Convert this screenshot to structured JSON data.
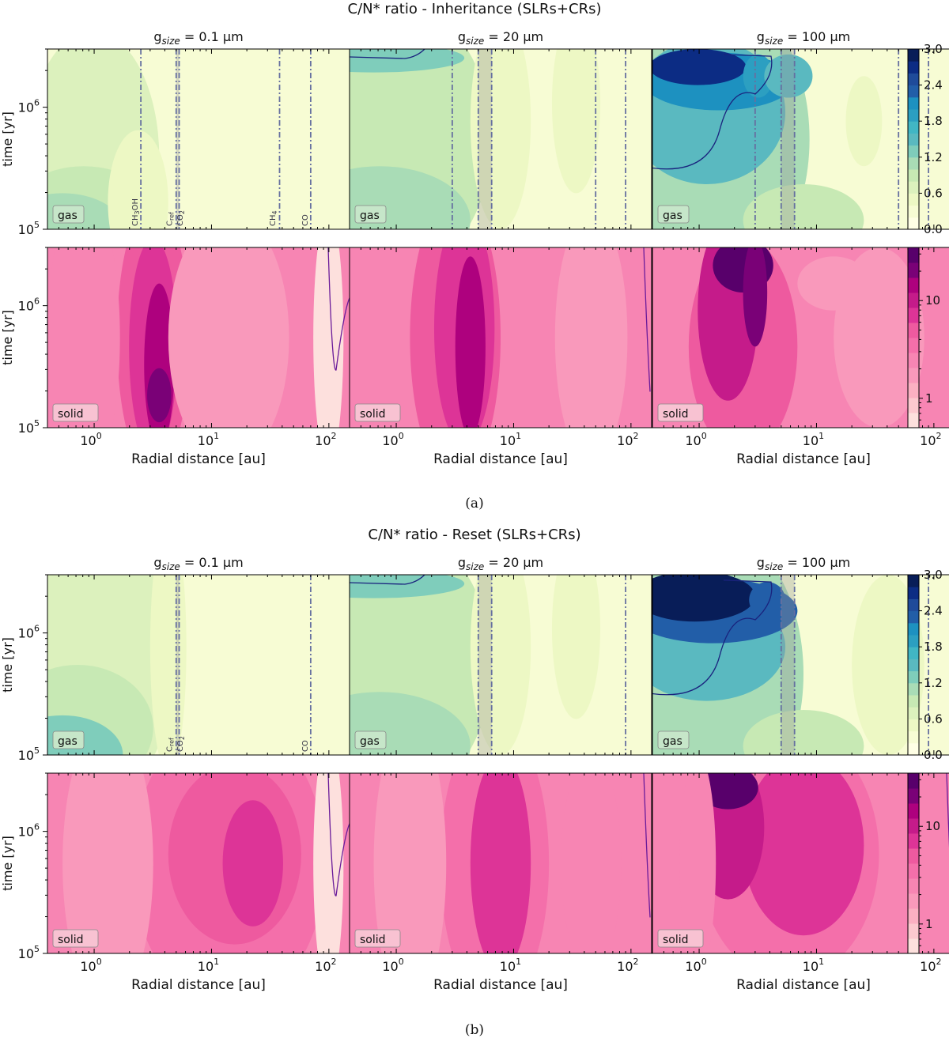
{
  "figures": [
    {
      "id": "a",
      "title": "C/N* ratio - Inheritance (SLRs+CRs)",
      "caption": "(a)",
      "panel_titles": [
        "g_size = 0.1 μm",
        "g_size = 20 μm",
        "g_size = 100 μm"
      ],
      "row_labels": [
        "gas",
        "solid"
      ],
      "ice_lines_labeled": [
        "CH3OH",
        "Cref",
        "CO2",
        "CH4",
        "CO"
      ]
    },
    {
      "id": "b",
      "title": "C/N* ratio - Reset (SLRs+CRs)",
      "caption": "(b)",
      "panel_titles": [
        "g_size = 0.1 μm",
        "g_size = 20 μm",
        "g_size = 100 μm"
      ],
      "row_labels": [
        "gas",
        "solid"
      ],
      "ice_lines_labeled": [
        "Cref",
        "CO2",
        "CO"
      ]
    }
  ],
  "axes": {
    "ylabel": "time [yr]",
    "xlabel": "Radial distance [au]",
    "xtick_labels": [
      "10^0",
      "10^1",
      "10^2"
    ],
    "ytick_labels": [
      "10^5",
      "10^6"
    ],
    "x_scale": "log",
    "y_scale": "log",
    "xlim": [
      0.4,
      150
    ],
    "ylim": [
      100000,
      3000000
    ]
  },
  "colorbars": {
    "gas": {
      "colormap": "YlGnBu",
      "ticks": [
        "0.0",
        "0.6",
        "1.2",
        "1.8",
        "2.4",
        "3.0"
      ],
      "range": [
        0,
        3
      ]
    },
    "solid": {
      "colormap": "RdPu",
      "ticks": [
        "1",
        "10"
      ],
      "scale": "log"
    }
  },
  "chart_data": [
    {
      "type": "heatmap",
      "title": "C/N* ratio - Inheritance (SLRs+CRs)",
      "panels": [
        {
          "row": "gas",
          "grain_size_um": 0.1,
          "ice_lines_au": [
            2.5,
            5.0,
            5.3,
            38,
            70
          ],
          "contour_cn_1": false
        },
        {
          "row": "gas",
          "grain_size_um": 20,
          "ice_lines_au": [
            3.0,
            5.0,
            6.5,
            50,
            90
          ],
          "contour_cn_1": true
        },
        {
          "row": "gas",
          "grain_size_um": 100,
          "ice_lines_au": [
            3.0,
            5.0,
            6.5,
            50,
            90
          ],
          "contour_cn_1": true
        },
        {
          "row": "solid",
          "grain_size_um": 0.1,
          "contour_cn_1": true
        },
        {
          "row": "solid",
          "grain_size_um": 20,
          "contour_cn_1": true
        },
        {
          "row": "solid",
          "grain_size_um": 100,
          "contour_cn_1": false
        }
      ]
    },
    {
      "type": "heatmap",
      "title": "C/N* ratio - Reset (SLRs+CRs)",
      "panels": [
        {
          "row": "gas",
          "grain_size_um": 0.1,
          "ice_lines_au": [
            5.0,
            5.3,
            70
          ],
          "contour_cn_1": false
        },
        {
          "row": "gas",
          "grain_size_um": 20,
          "ice_lines_au": [
            5.0,
            6.5,
            90
          ],
          "contour_cn_1": true
        },
        {
          "row": "gas",
          "grain_size_um": 100,
          "ice_lines_au": [
            5.0,
            6.5,
            90
          ],
          "contour_cn_1": true
        },
        {
          "row": "solid",
          "grain_size_um": 0.1,
          "contour_cn_1": true
        },
        {
          "row": "solid",
          "grain_size_um": 20,
          "contour_cn_1": true
        },
        {
          "row": "solid",
          "grain_size_um": 100,
          "contour_cn_1": true
        }
      ]
    }
  ]
}
